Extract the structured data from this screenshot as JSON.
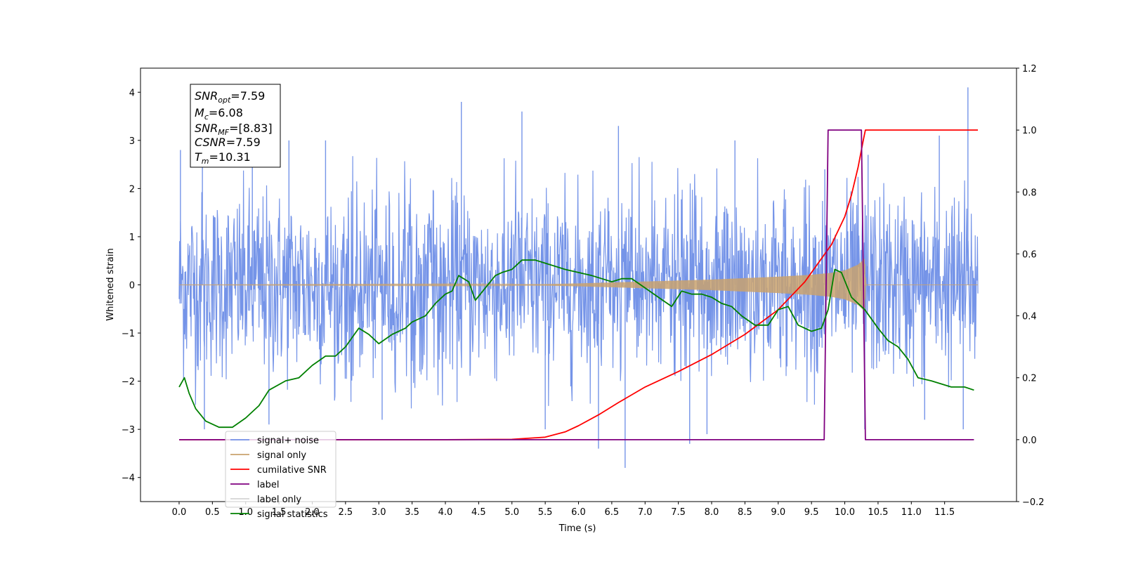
{
  "chart_data": {
    "type": "line",
    "xlabel": "Time (s)",
    "ylabel": "Whitened strain",
    "xlim": [
      -0.58,
      12.58
    ],
    "ylim": [
      -4.5,
      4.5
    ],
    "y2lim": [
      -0.2,
      1.2
    ],
    "x_ticks": [
      0.0,
      0.5,
      1.0,
      1.5,
      2.0,
      2.5,
      3.0,
      3.5,
      4.0,
      4.5,
      5.0,
      5.5,
      6.0,
      6.5,
      7.0,
      7.5,
      8.0,
      8.5,
      9.0,
      9.5,
      10.0,
      10.5,
      11.0,
      11.5
    ],
    "x_tick_labels": [
      "0.0",
      "0.5",
      "1.0",
      "1.5",
      "2.0",
      "2.5",
      "3.0",
      "3.5",
      "4.0",
      "4.5",
      "5.0",
      "5.5",
      "6.0",
      "6.5",
      "7.0",
      "7.5",
      "8.0",
      "8.5",
      "9.0",
      "9.5",
      "10.0",
      "10.5",
      "11.0",
      "11.5"
    ],
    "y_ticks": [
      -4,
      -3,
      -2,
      -1,
      0,
      1,
      2,
      3,
      4
    ],
    "y_tick_labels": [
      "−4",
      "−3",
      "−2",
      "−1",
      "0",
      "1",
      "2",
      "3",
      "4"
    ],
    "y2_ticks": [
      -0.2,
      0.0,
      0.2,
      0.4,
      0.6,
      0.8,
      1.0,
      1.2
    ],
    "y2_tick_labels": [
      "−0.2",
      "0.0",
      "0.2",
      "0.4",
      "0.6",
      "0.8",
      "1.0",
      "1.2"
    ],
    "grid": false,
    "legend_position": "bottom-left",
    "info_box": {
      "snr_opt": {
        "base": "SNR",
        "sub": "opt",
        "value": "=7.59"
      },
      "mc": {
        "base": "M",
        "sub": "c",
        "value": "=6.08"
      },
      "snr_mf": {
        "base": "SNR",
        "sub": "MF",
        "value": "=[8.83]"
      },
      "csnr": {
        "base": "CSNR",
        "sub": "",
        "value": "=7.59"
      },
      "tm": {
        "base": "T",
        "sub": "m",
        "value": "=10.31"
      }
    },
    "series": [
      {
        "name": "signal+ noise",
        "axis": "left",
        "color": "#7594e8",
        "style": "noise",
        "x_range": [
          0.0,
          12.0
        ],
        "sigma": 0.95,
        "peaks": [
          {
            "x": 0.02,
            "y": 2.8
          },
          {
            "x": 0.35,
            "y": 3.0
          },
          {
            "x": 0.38,
            "y": -3.0
          },
          {
            "x": 1.1,
            "y": 3.0
          },
          {
            "x": 1.35,
            "y": -2.9
          },
          {
            "x": 1.65,
            "y": 3.0
          },
          {
            "x": 2.2,
            "y": 3.0
          },
          {
            "x": 3.05,
            "y": -2.8
          },
          {
            "x": 4.24,
            "y": 3.8
          },
          {
            "x": 5.15,
            "y": 3.6
          },
          {
            "x": 5.5,
            "y": -3.0
          },
          {
            "x": 6.3,
            "y": -3.4
          },
          {
            "x": 6.7,
            "y": -3.8
          },
          {
            "x": 6.6,
            "y": 3.3
          },
          {
            "x": 7.67,
            "y": -3.3
          },
          {
            "x": 7.93,
            "y": -3.1
          },
          {
            "x": 8.35,
            "y": 3.0
          },
          {
            "x": 9.7,
            "y": 2.4
          },
          {
            "x": 10.3,
            "y": -3.0
          },
          {
            "x": 10.35,
            "y": 2.7
          },
          {
            "x": 11.2,
            "y": -2.8
          },
          {
            "x": 11.42,
            "y": 3.1
          },
          {
            "x": 11.78,
            "y": -3.0
          },
          {
            "x": 11.85,
            "y": 4.1
          }
        ]
      },
      {
        "name": "signal only",
        "axis": "left",
        "color": "#c9a26e",
        "style": "chirp",
        "x_range": [
          0.0,
          12.0
        ],
        "envelope": [
          [
            0.0,
            0.002
          ],
          [
            5.5,
            0.015
          ],
          [
            6.0,
            0.03
          ],
          [
            6.5,
            0.05
          ],
          [
            7.0,
            0.07
          ],
          [
            7.5,
            0.09
          ],
          [
            8.0,
            0.11
          ],
          [
            8.5,
            0.14
          ],
          [
            9.0,
            0.17
          ],
          [
            9.5,
            0.21
          ],
          [
            9.8,
            0.25
          ],
          [
            10.0,
            0.3
          ],
          [
            10.2,
            0.42
          ],
          [
            10.3,
            0.55
          ],
          [
            10.32,
            0.0
          ],
          [
            12.0,
            0.0
          ]
        ]
      },
      {
        "name": "cumilative SNR",
        "axis": "right",
        "color": "#ff0000",
        "style": "line",
        "points": [
          [
            0.0,
            0.0
          ],
          [
            4.0,
            0.0
          ],
          [
            5.0,
            0.001
          ],
          [
            5.5,
            0.008
          ],
          [
            5.8,
            0.025
          ],
          [
            6.0,
            0.045
          ],
          [
            6.3,
            0.08
          ],
          [
            6.6,
            0.12
          ],
          [
            7.0,
            0.17
          ],
          [
            7.5,
            0.22
          ],
          [
            8.0,
            0.275
          ],
          [
            8.5,
            0.34
          ],
          [
            9.0,
            0.42
          ],
          [
            9.4,
            0.51
          ],
          [
            9.8,
            0.63
          ],
          [
            10.0,
            0.72
          ],
          [
            10.1,
            0.79
          ],
          [
            10.2,
            0.88
          ],
          [
            10.28,
            0.97
          ],
          [
            10.31,
            1.0
          ],
          [
            12.0,
            1.0
          ]
        ]
      },
      {
        "name": "label",
        "axis": "right",
        "color": "#800080",
        "style": "line",
        "points": [
          [
            0.0,
            0.0
          ],
          [
            9.69,
            0.0
          ],
          [
            9.75,
            1.0
          ],
          [
            10.25,
            1.0
          ],
          [
            10.31,
            0.0
          ],
          [
            11.94,
            0.0
          ]
        ]
      },
      {
        "name": "label only",
        "axis": "right",
        "color": "#d4d4d4",
        "style": "line",
        "points": []
      },
      {
        "name": "signal statistics",
        "axis": "right",
        "color": "#008000",
        "style": "line",
        "points": [
          [
            0.0,
            0.17
          ],
          [
            0.08,
            0.2
          ],
          [
            0.15,
            0.15
          ],
          [
            0.25,
            0.1
          ],
          [
            0.4,
            0.06
          ],
          [
            0.6,
            0.04
          ],
          [
            0.8,
            0.04
          ],
          [
            1.0,
            0.07
          ],
          [
            1.2,
            0.11
          ],
          [
            1.35,
            0.16
          ],
          [
            1.6,
            0.19
          ],
          [
            1.8,
            0.2
          ],
          [
            2.0,
            0.24
          ],
          [
            2.2,
            0.27
          ],
          [
            2.35,
            0.27
          ],
          [
            2.5,
            0.3
          ],
          [
            2.6,
            0.33
          ],
          [
            2.7,
            0.36
          ],
          [
            2.85,
            0.34
          ],
          [
            3.0,
            0.31
          ],
          [
            3.2,
            0.34
          ],
          [
            3.4,
            0.36
          ],
          [
            3.5,
            0.38
          ],
          [
            3.7,
            0.4
          ],
          [
            3.85,
            0.44
          ],
          [
            4.0,
            0.47
          ],
          [
            4.1,
            0.48
          ],
          [
            4.2,
            0.53
          ],
          [
            4.35,
            0.51
          ],
          [
            4.45,
            0.45
          ],
          [
            4.6,
            0.49
          ],
          [
            4.75,
            0.53
          ],
          [
            4.85,
            0.54
          ],
          [
            5.0,
            0.55
          ],
          [
            5.15,
            0.58
          ],
          [
            5.35,
            0.58
          ],
          [
            5.5,
            0.57
          ],
          [
            5.8,
            0.55
          ],
          [
            6.0,
            0.54
          ],
          [
            6.2,
            0.53
          ],
          [
            6.35,
            0.52
          ],
          [
            6.5,
            0.51
          ],
          [
            6.65,
            0.52
          ],
          [
            6.8,
            0.52
          ],
          [
            7.0,
            0.49
          ],
          [
            7.2,
            0.46
          ],
          [
            7.4,
            0.43
          ],
          [
            7.55,
            0.48
          ],
          [
            7.7,
            0.47
          ],
          [
            7.85,
            0.47
          ],
          [
            8.0,
            0.46
          ],
          [
            8.15,
            0.44
          ],
          [
            8.3,
            0.43
          ],
          [
            8.45,
            0.4
          ],
          [
            8.65,
            0.37
          ],
          [
            8.85,
            0.37
          ],
          [
            9.0,
            0.42
          ],
          [
            9.15,
            0.43
          ],
          [
            9.3,
            0.37
          ],
          [
            9.5,
            0.35
          ],
          [
            9.65,
            0.36
          ],
          [
            9.75,
            0.42
          ],
          [
            9.85,
            0.55
          ],
          [
            9.95,
            0.54
          ],
          [
            10.1,
            0.46
          ],
          [
            10.3,
            0.42
          ],
          [
            10.5,
            0.36
          ],
          [
            10.65,
            0.32
          ],
          [
            10.8,
            0.3
          ],
          [
            10.95,
            0.26
          ],
          [
            11.1,
            0.2
          ],
          [
            11.3,
            0.19
          ],
          [
            11.45,
            0.18
          ],
          [
            11.6,
            0.17
          ],
          [
            11.8,
            0.17
          ],
          [
            11.94,
            0.16
          ]
        ]
      }
    ]
  }
}
